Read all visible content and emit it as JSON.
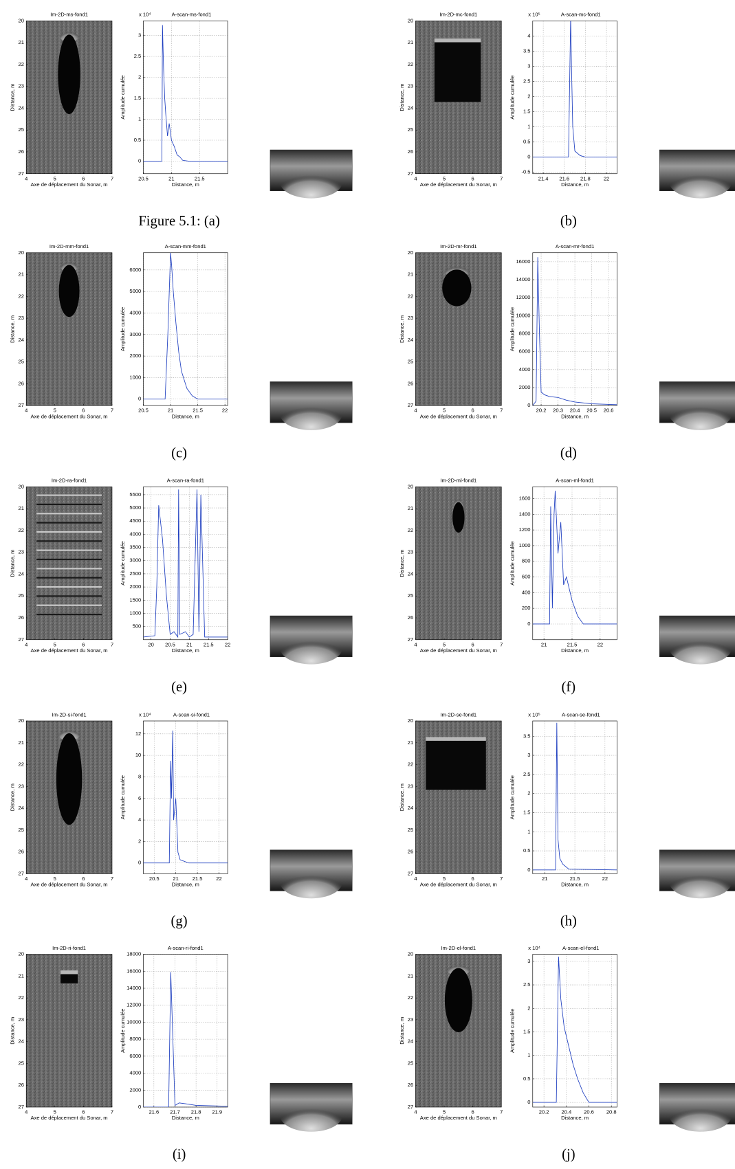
{
  "chart_data": [
    {
      "type": "image",
      "title": "Im-2D-ms-fond1",
      "xlabel": "Axe de déplacement du Sonar, m",
      "ylabel": "Distance, m",
      "xlim": [
        4,
        7
      ],
      "ylim": [
        27,
        20
      ],
      "xticks": [
        4,
        5,
        6,
        7
      ],
      "yticks": [
        20,
        21,
        22,
        23,
        24,
        25,
        26,
        27
      ]
    },
    {
      "type": "line",
      "title": "A-scan-ms-fond1",
      "y_exponent": "x 10⁴",
      "xlabel": "Distance, m",
      "ylabel": "Amplitude cumulée",
      "color": "#2040c0",
      "grid": true,
      "xlim": [
        20.5,
        22
      ],
      "ylim": [
        -0.3,
        3.35
      ],
      "xticks": [
        20.5,
        21,
        21.5
      ],
      "yticks": [
        0,
        0.5,
        1,
        1.5,
        2,
        2.5,
        3
      ],
      "x": [
        20.5,
        20.83,
        20.84,
        20.86,
        20.88,
        20.9,
        20.93,
        20.96,
        21,
        21.05,
        21.1,
        21.15,
        21.2,
        21.3,
        22
      ],
      "values": [
        0,
        0,
        3.25,
        2.2,
        1.5,
        1.1,
        0.6,
        0.9,
        0.5,
        0.35,
        0.15,
        0.1,
        0.02,
        0,
        0
      ]
    },
    {
      "type": "image",
      "title": "Im-2D-mc-fond1",
      "xlabel": "Axe de déplacement du Sonar, m",
      "ylabel": "Distance, m",
      "xlim": [
        4,
        7
      ],
      "ylim": [
        27,
        20
      ],
      "xticks": [
        4,
        5,
        6,
        7
      ],
      "yticks": [
        20,
        21,
        22,
        23,
        24,
        25,
        26,
        27
      ]
    },
    {
      "type": "line",
      "title": "A-scan-mc-fond1",
      "y_exponent": "x 10⁵",
      "xlabel": "Distance, m",
      "ylabel": "Amplitude cumulée",
      "color": "#2040c0",
      "grid": true,
      "xlim": [
        21.3,
        22.1
      ],
      "ylim": [
        -0.55,
        4.5
      ],
      "xticks": [
        21.4,
        21.6,
        21.8,
        22
      ],
      "yticks": [
        -0.5,
        0,
        0.5,
        1,
        1.5,
        2,
        2.5,
        3,
        3.5,
        4
      ],
      "x": [
        21.3,
        21.64,
        21.66,
        21.67,
        21.68,
        21.7,
        21.75,
        21.8,
        22.1
      ],
      "values": [
        0,
        0,
        4.6,
        2.7,
        1,
        0.2,
        0.05,
        0,
        0
      ]
    },
    {
      "type": "image",
      "title": "Im-2D-mm-fond1",
      "xlabel": "Axe de déplacement du Sonar, m",
      "ylabel": "Distance, m",
      "xlim": [
        4,
        7
      ],
      "ylim": [
        27,
        20
      ],
      "xticks": [
        4,
        5,
        6,
        7
      ],
      "yticks": [
        20,
        21,
        22,
        23,
        24,
        25,
        26,
        27
      ]
    },
    {
      "type": "line",
      "title": "A-scan-mm-fond1",
      "xlabel": "Distance, m",
      "ylabel": "Amplitude cumulée",
      "color": "#2040c0",
      "grid": true,
      "xlim": [
        20.5,
        22.05
      ],
      "ylim": [
        -300,
        6800
      ],
      "xticks": [
        20.5,
        21,
        21.5,
        22
      ],
      "yticks": [
        0,
        1000,
        2000,
        3000,
        4000,
        5000,
        6000
      ],
      "x": [
        20.5,
        20.9,
        20.95,
        21,
        21.02,
        21.05,
        21.1,
        21.15,
        21.2,
        21.3,
        21.4,
        21.5,
        22.05
      ],
      "values": [
        0,
        0,
        3000,
        6800,
        6200,
        5000,
        3500,
        2200,
        1300,
        500,
        150,
        0,
        0
      ]
    },
    {
      "type": "image",
      "title": "Im-2D-mr-fond1",
      "xlabel": "Axe de déplacement du Sonar, m",
      "ylabel": "Distance, m",
      "xlim": [
        4,
        7
      ],
      "ylim": [
        27,
        20
      ],
      "xticks": [
        4,
        5,
        6,
        7
      ],
      "yticks": [
        20,
        21,
        22,
        23,
        24,
        25,
        26,
        27
      ]
    },
    {
      "type": "line",
      "title": "A-scan-mr-fond1",
      "xlabel": "Distance, m",
      "ylabel": "Amplitude cumulée",
      "color": "#2040c0",
      "grid": true,
      "xlim": [
        20.15,
        20.65
      ],
      "ylim": [
        0,
        17000
      ],
      "xticks": [
        20.2,
        20.3,
        20.4,
        20.5,
        20.6
      ],
      "yticks": [
        0,
        2000,
        4000,
        6000,
        8000,
        10000,
        12000,
        14000,
        16000
      ],
      "x": [
        20.15,
        20.17,
        20.18,
        20.19,
        20.2,
        20.22,
        20.25,
        20.3,
        20.35,
        20.4,
        20.5,
        20.65
      ],
      "values": [
        0,
        500,
        16500,
        8000,
        1500,
        1200,
        1000,
        900,
        600,
        400,
        200,
        100
      ]
    },
    {
      "type": "image",
      "title": "Im-2D-ra-fond1",
      "xlabel": "Axe de déplacement du Sonar, m",
      "ylabel": "Distance, m",
      "xlim": [
        4,
        7
      ],
      "ylim": [
        27,
        20
      ],
      "xticks": [
        4,
        5,
        6,
        7
      ],
      "yticks": [
        20,
        21,
        22,
        23,
        24,
        25,
        26,
        27
      ]
    },
    {
      "type": "line",
      "title": "A-scan-ra-fond1",
      "xlabel": "Distance, m",
      "ylabel": "Amplitude cumulée",
      "color": "#2040c0",
      "grid": true,
      "xlim": [
        19.8,
        22
      ],
      "ylim": [
        0,
        5800
      ],
      "xticks": [
        20,
        20.5,
        21,
        21.5,
        22
      ],
      "yticks": [
        500,
        1000,
        1500,
        2000,
        2500,
        3000,
        3500,
        4000,
        4500,
        5000,
        5500
      ],
      "x": [
        19.8,
        20.1,
        20.15,
        20.2,
        20.3,
        20.4,
        20.5,
        20.6,
        20.7,
        20.72,
        20.75,
        20.9,
        21,
        21.1,
        21.2,
        21.25,
        21.3,
        21.4,
        22
      ],
      "values": [
        100,
        150,
        2000,
        5100,
        3800,
        1700,
        200,
        300,
        100,
        5700,
        200,
        300,
        100,
        200,
        5700,
        300,
        5500,
        100,
        100
      ]
    },
    {
      "type": "image",
      "title": "Im-2D-ml-fond1",
      "xlabel": "Axe de déplacement du Sonar, m",
      "ylabel": "Distance, m",
      "xlim": [
        4,
        7
      ],
      "ylim": [
        27,
        20
      ],
      "xticks": [
        4,
        5,
        6,
        7
      ],
      "yticks": [
        20,
        21,
        22,
        23,
        24,
        25,
        26,
        27
      ]
    },
    {
      "type": "line",
      "title": "A-scan-ml-fond1",
      "xlabel": "Distance, m",
      "ylabel": "Amplitude cumulée",
      "color": "#2040c0",
      "grid": true,
      "xlim": [
        20.8,
        22.3
      ],
      "ylim": [
        -200,
        1750
      ],
      "xticks": [
        21,
        21.5,
        22
      ],
      "yticks": [
        0,
        200,
        400,
        600,
        800,
        1000,
        1200,
        1400,
        1600
      ],
      "x": [
        20.8,
        21.1,
        21.12,
        21.15,
        21.18,
        21.2,
        21.25,
        21.3,
        21.35,
        21.4,
        21.5,
        21.6,
        21.7,
        22.3
      ],
      "values": [
        0,
        0,
        1500,
        200,
        1400,
        1700,
        900,
        1300,
        500,
        600,
        300,
        100,
        0,
        0
      ]
    },
    {
      "type": "image",
      "title": "Im-2D-si-fond1",
      "xlabel": "Axe de déplacement du Sonar, m",
      "ylabel": "Distance, m",
      "xlim": [
        4,
        7
      ],
      "ylim": [
        27,
        20
      ],
      "xticks": [
        4,
        5,
        6,
        7
      ],
      "yticks": [
        20,
        21,
        22,
        23,
        24,
        25,
        26,
        27
      ]
    },
    {
      "type": "line",
      "title": "A-scan-si-fond1",
      "y_exponent": "x 10⁴",
      "xlabel": "Distance, m",
      "ylabel": "Amplitude cumulée",
      "color": "#2040c0",
      "grid": true,
      "xlim": [
        20.25,
        22.2
      ],
      "ylim": [
        -1,
        13.2
      ],
      "xticks": [
        20.5,
        21,
        21.5,
        22
      ],
      "yticks": [
        0,
        2,
        4,
        6,
        8,
        10,
        12
      ],
      "x": [
        20.25,
        20.85,
        20.88,
        20.9,
        20.93,
        20.95,
        21,
        21.05,
        21.1,
        21.3,
        22.2
      ],
      "values": [
        0,
        0,
        9.5,
        6,
        12.3,
        4,
        6,
        1,
        0.3,
        0,
        0
      ]
    },
    {
      "type": "image",
      "title": "Im-2D-se-fond1",
      "xlabel": "Axe de déplacement du Sonar, m",
      "ylabel": "Distance, m",
      "xlim": [
        4,
        7
      ],
      "ylim": [
        27,
        20
      ],
      "xticks": [
        4,
        5,
        6,
        7
      ],
      "yticks": [
        20,
        21,
        22,
        23,
        24,
        25,
        26,
        27
      ]
    },
    {
      "type": "line",
      "title": "A-scan-se-fond1",
      "y_exponent": "x 10⁵",
      "xlabel": "Distance, m",
      "ylabel": "Amplitude cumulée",
      "color": "#2040c0",
      "grid": true,
      "xlim": [
        20.8,
        22.2
      ],
      "ylim": [
        -0.1,
        3.9
      ],
      "xticks": [
        21,
        21.5,
        22
      ],
      "yticks": [
        0,
        0.5,
        1,
        1.5,
        2,
        2.5,
        3,
        3.5
      ],
      "x": [
        20.8,
        21.18,
        21.2,
        21.22,
        21.25,
        21.3,
        21.4,
        22.2
      ],
      "values": [
        0,
        0,
        3.85,
        0.8,
        0.3,
        0.15,
        0.02,
        0
      ]
    },
    {
      "type": "image",
      "title": "Im-2D-ri-fond1",
      "xlabel": "Axe de déplacement du Sonar, m",
      "ylabel": "Distance, m",
      "xlim": [
        4,
        7
      ],
      "ylim": [
        27,
        20
      ],
      "xticks": [
        4,
        5,
        6,
        7
      ],
      "yticks": [
        20,
        21,
        22,
        23,
        24,
        25,
        26,
        27
      ]
    },
    {
      "type": "line",
      "title": "A-scan-ri-fond1",
      "xlabel": "Distance, m",
      "ylabel": "Amplitude cumulée",
      "color": "#2040c0",
      "grid": true,
      "xlim": [
        21.55,
        21.95
      ],
      "ylim": [
        0,
        18000
      ],
      "xticks": [
        21.6,
        21.7,
        21.8,
        21.9
      ],
      "yticks": [
        0,
        2000,
        4000,
        6000,
        8000,
        10000,
        12000,
        14000,
        16000,
        18000
      ],
      "x": [
        21.55,
        21.67,
        21.68,
        21.69,
        21.7,
        21.72,
        21.75,
        21.8,
        21.95
      ],
      "values": [
        0,
        0,
        15900,
        8000,
        200,
        500,
        400,
        200,
        100
      ]
    },
    {
      "type": "image",
      "title": "Im-2D-el-fond1",
      "xlabel": "Axe de déplacement du Sonar, m",
      "ylabel": "Distance, m",
      "xlim": [
        4,
        7
      ],
      "ylim": [
        27,
        20
      ],
      "xticks": [
        4,
        5,
        6,
        7
      ],
      "yticks": [
        20,
        21,
        22,
        23,
        24,
        25,
        26,
        27
      ]
    },
    {
      "type": "line",
      "title": "A-scan-el-fond1",
      "y_exponent": "x 10⁴",
      "xlabel": "Distance, m",
      "ylabel": "Amplitude cumulée",
      "color": "#2040c0",
      "grid": true,
      "xlim": [
        20.1,
        20.85
      ],
      "ylim": [
        -0.1,
        3.15
      ],
      "xticks": [
        20.2,
        20.4,
        20.6,
        20.8
      ],
      "yticks": [
        0,
        0.5,
        1,
        1.5,
        2,
        2.5,
        3
      ],
      "x": [
        20.1,
        20.31,
        20.33,
        20.35,
        20.38,
        20.42,
        20.46,
        20.5,
        20.55,
        20.6,
        20.85
      ],
      "values": [
        0,
        0,
        3.1,
        2.2,
        1.6,
        1.2,
        0.8,
        0.5,
        0.2,
        0,
        0
      ]
    }
  ],
  "captions": [
    "Figure 5.1: (a)",
    "(b)",
    "(c)",
    "(d)",
    "(e)",
    "(f)",
    "(g)",
    "(h)",
    "(i)",
    "(j)"
  ]
}
